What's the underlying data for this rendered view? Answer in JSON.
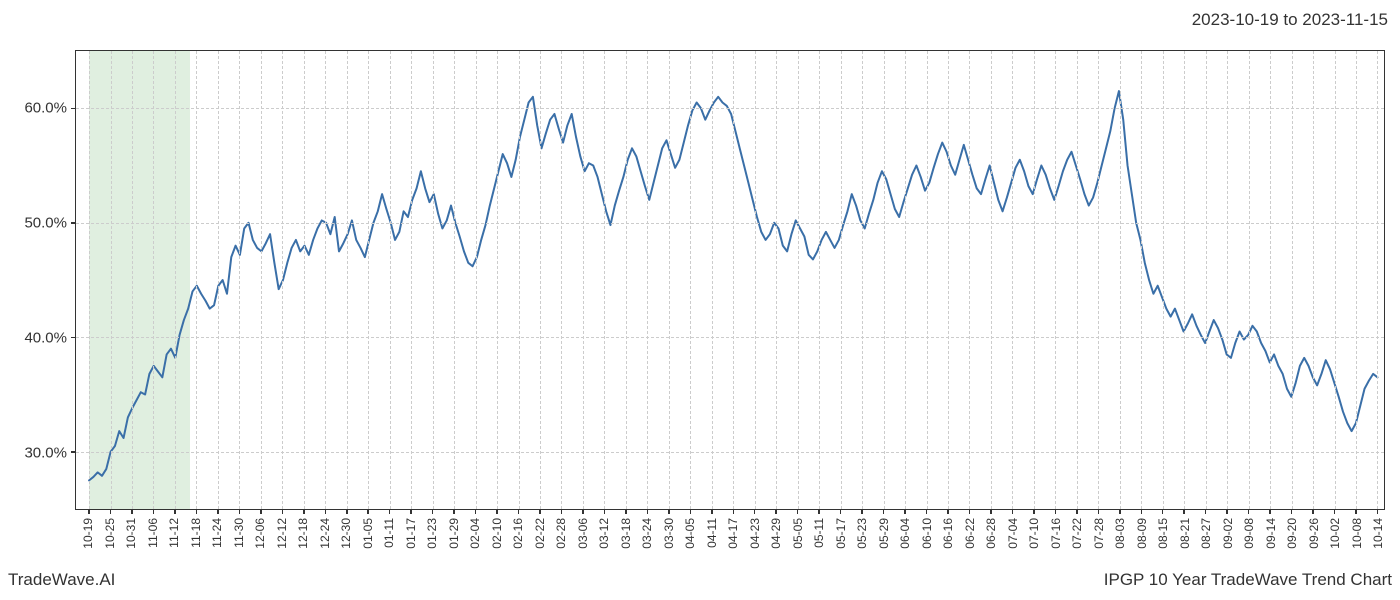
{
  "header": {
    "date_range": "2023-10-19 to 2023-11-15"
  },
  "footer": {
    "brand": "TradeWave.AI",
    "title": "IPGP 10 Year TradeWave Trend Chart"
  },
  "chart": {
    "type": "line",
    "background_color": "#ffffff",
    "grid_color": "#cccccc",
    "axis_color": "#333333",
    "line_color": "#3a6fa8",
    "line_width": 2,
    "highlight_band_color": "rgba(144,198,144,0.28)",
    "ylim": [
      25,
      65
    ],
    "y_ticks": [
      30.0,
      40.0,
      50.0,
      60.0
    ],
    "y_tick_labels": [
      "30.0%",
      "40.0%",
      "50.0%",
      "60.0%"
    ],
    "x_labels": [
      "10-19",
      "10-25",
      "10-31",
      "11-06",
      "11-12",
      "11-18",
      "11-24",
      "11-30",
      "12-06",
      "12-12",
      "12-18",
      "12-24",
      "12-30",
      "01-05",
      "01-11",
      "01-17",
      "01-23",
      "01-29",
      "02-04",
      "02-10",
      "02-16",
      "02-22",
      "02-28",
      "03-06",
      "03-12",
      "03-18",
      "03-24",
      "03-30",
      "04-05",
      "04-11",
      "04-17",
      "04-23",
      "04-29",
      "05-05",
      "05-11",
      "05-17",
      "05-23",
      "05-29",
      "06-04",
      "06-10",
      "06-16",
      "06-22",
      "06-28",
      "07-04",
      "07-10",
      "07-16",
      "07-22",
      "07-28",
      "08-03",
      "08-09",
      "08-15",
      "08-21",
      "08-27",
      "09-02",
      "09-08",
      "09-14",
      "09-20",
      "09-26",
      "10-02",
      "10-08",
      "10-14"
    ],
    "highlight_band": {
      "start_index": 0,
      "end_index": 4.7
    },
    "label_fontsize": 15,
    "xlabel_fontsize": 12,
    "values": [
      27.5,
      27.8,
      28.2,
      27.9,
      28.5,
      30.0,
      30.5,
      31.8,
      31.2,
      33.0,
      33.8,
      34.5,
      35.2,
      35.0,
      36.8,
      37.5,
      37.0,
      36.5,
      38.5,
      39.0,
      38.2,
      40.2,
      41.5,
      42.5,
      44.0,
      44.5,
      43.8,
      43.2,
      42.5,
      42.8,
      44.5,
      45.0,
      43.8,
      47.0,
      48.0,
      47.2,
      49.5,
      50.0,
      48.5,
      47.8,
      47.5,
      48.2,
      49.0,
      46.5,
      44.2,
      45.0,
      46.5,
      47.8,
      48.5,
      47.5,
      48.0,
      47.2,
      48.5,
      49.5,
      50.2,
      50.0,
      49.0,
      50.5,
      47.5,
      48.2,
      49.0,
      50.2,
      48.5,
      47.8,
      47.0,
      48.5,
      50.0,
      51.0,
      52.5,
      51.2,
      50.0,
      48.5,
      49.2,
      51.0,
      50.5,
      52.0,
      53.0,
      54.5,
      53.0,
      51.8,
      52.5,
      50.8,
      49.5,
      50.2,
      51.5,
      50.0,
      48.8,
      47.5,
      46.5,
      46.2,
      47.0,
      48.5,
      49.8,
      51.5,
      53.0,
      54.5,
      56.0,
      55.2,
      54.0,
      55.5,
      57.5,
      59.0,
      60.5,
      61.0,
      58.5,
      56.5,
      57.8,
      59.0,
      59.5,
      58.2,
      57.0,
      58.5,
      59.5,
      57.5,
      55.8,
      54.5,
      55.2,
      55.0,
      54.0,
      52.5,
      51.0,
      49.8,
      51.5,
      52.8,
      54.0,
      55.5,
      56.5,
      55.8,
      54.5,
      53.2,
      52.0,
      53.5,
      55.0,
      56.5,
      57.2,
      56.0,
      54.8,
      55.5,
      57.0,
      58.5,
      59.8,
      60.5,
      60.0,
      59.0,
      59.8,
      60.5,
      61.0,
      60.5,
      60.2,
      59.5,
      58.0,
      56.5,
      55.0,
      53.5,
      52.0,
      50.5,
      49.2,
      48.5,
      49.0,
      50.0,
      49.5,
      48.0,
      47.5,
      49.0,
      50.2,
      49.5,
      48.8,
      47.2,
      46.8,
      47.5,
      48.5,
      49.2,
      48.5,
      47.8,
      48.5,
      49.8,
      51.0,
      52.5,
      51.5,
      50.2,
      49.5,
      50.8,
      52.0,
      53.5,
      54.5,
      53.8,
      52.5,
      51.2,
      50.5,
      51.8,
      53.0,
      54.2,
      55.0,
      54.0,
      52.8,
      53.5,
      54.8,
      56.0,
      57.0,
      56.2,
      55.0,
      54.2,
      55.5,
      56.8,
      55.5,
      54.2,
      53.0,
      52.5,
      53.8,
      55.0,
      53.5,
      52.0,
      51.0,
      52.2,
      53.5,
      54.8,
      55.5,
      54.5,
      53.2,
      52.5,
      53.8,
      55.0,
      54.2,
      53.0,
      52.0,
      53.2,
      54.5,
      55.5,
      56.2,
      55.0,
      53.8,
      52.5,
      51.5,
      52.2,
      53.5,
      55.0,
      56.5,
      58.0,
      60.0,
      61.5,
      59.0,
      55.0,
      52.5,
      50.0,
      48.5,
      46.5,
      45.0,
      43.8,
      44.5,
      43.5,
      42.5,
      41.8,
      42.5,
      41.5,
      40.5,
      41.2,
      42.0,
      41.0,
      40.2,
      39.5,
      40.5,
      41.5,
      40.8,
      39.8,
      38.5,
      38.2,
      39.5,
      40.5,
      39.8,
      40.2,
      41.0,
      40.5,
      39.5,
      38.8,
      37.8,
      38.5,
      37.5,
      36.8,
      35.5,
      34.8,
      36.0,
      37.5,
      38.2,
      37.5,
      36.5,
      35.8,
      36.8,
      38.0,
      37.2,
      36.0,
      34.8,
      33.5,
      32.5,
      31.8,
      32.5,
      34.0,
      35.5,
      36.2,
      36.8,
      36.5
    ]
  }
}
